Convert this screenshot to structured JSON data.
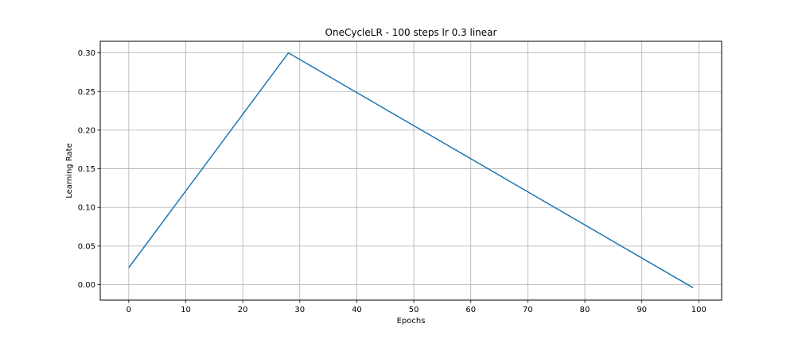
{
  "chart_data": {
    "type": "line",
    "title": "OneCycleLR - 100 steps lr 0.3 linear",
    "xlabel": "Epochs",
    "ylabel": "Learning Rate",
    "xlim": [
      -5,
      104
    ],
    "ylim": [
      -0.02,
      0.315
    ],
    "xticks": [
      0,
      10,
      20,
      30,
      40,
      50,
      60,
      70,
      80,
      90,
      100
    ],
    "xtick_labels": [
      "0",
      "10",
      "20",
      "30",
      "40",
      "50",
      "60",
      "70",
      "80",
      "90",
      "100"
    ],
    "yticks": [
      0.0,
      0.05,
      0.1,
      0.15,
      0.2,
      0.25,
      0.3
    ],
    "ytick_labels": [
      "0.00",
      "0.05",
      "0.10",
      "0.15",
      "0.20",
      "0.25",
      "0.30"
    ],
    "grid": true,
    "series": [
      {
        "color": "#1f77b4",
        "x": [
          0,
          28,
          99
        ],
        "y": [
          0.022,
          0.3,
          -0.004
        ]
      }
    ]
  }
}
